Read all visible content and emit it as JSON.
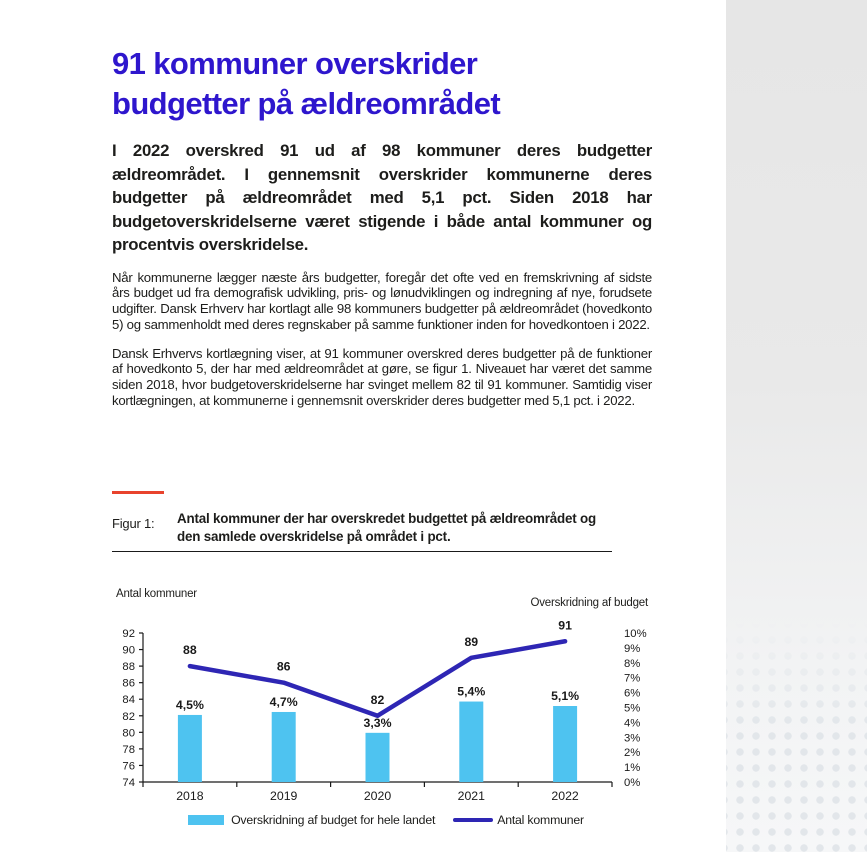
{
  "colors": {
    "title_blue": "#2e16cd",
    "line_blue": "#2e26b4",
    "bar_blue": "#4ec3f0",
    "accent_red": "#e8432d",
    "text": "#1d1d1b",
    "panel_gray": "#e7e7e7"
  },
  "article": {
    "title_line1": "91 kommuner overskrider",
    "title_line2": "budgetter på ældreområdet",
    "lead": "I 2022 overskred 91 ud af 98 kommuner deres budgetter ældreområdet. I gennemsnit overskrider kommunerne deres budgetter på ældreområdet med 5,1 pct. Siden 2018 har budgetoverskridelserne været stigende i både antal kommuner og procentvis overskridelse.",
    "paragraph1": "Når kommunerne lægger næste års budgetter, foregår det ofte ved en fremskrivning af sidste års budget ud fra demografisk udvikling, pris- og lønudviklingen og indregning af nye, forudsete udgifter. Dansk Erhverv har kortlagt alle 98 kommuners budgetter på ældreområdet (hovedkonto 5) og sammenholdt med deres regnskaber på samme funktioner inden for hovedkontoen i 2022.",
    "paragraph2": "Dansk Erhvervs kortlægning viser, at 91 kommuner overskred deres budgetter på de funktioner af hovedkonto 5, der har med ældreområdet at gøre, se figur 1. Niveauet har været det samme siden 2018, hvor budgetoverskridelserne har svinget mellem 82 til 91 kommuner. Samtidig viser kortlægningen, at kommunerne i gennemsnit overskrider deres budgetter med 5,1 pct. i 2022."
  },
  "figure": {
    "label": "Figur 1:",
    "caption": "Antal kommuner der har overskredet budgettet på ældreområdet og den samlede overskridelse på området i pct.",
    "axis_title_left": "Antal kommuner",
    "axis_title_right": "Overskridning af budget"
  },
  "chart_data": {
    "type": "combo",
    "categories": [
      "2018",
      "2019",
      "2020",
      "2021",
      "2022"
    ],
    "series": [
      {
        "name": "Overskridning af budget for hele landet",
        "type": "bar",
        "axis": "right",
        "values": [
          4.5,
          4.7,
          3.3,
          5.4,
          5.1
        ],
        "labels": [
          "4,5%",
          "4,7%",
          "3,3%",
          "5,4%",
          "5,1%"
        ],
        "color": "#4ec3f0"
      },
      {
        "name": "Antal kommuner",
        "type": "line",
        "axis": "left",
        "values": [
          88,
          86,
          82,
          89,
          91
        ],
        "labels": [
          "88",
          "86",
          "82",
          "89",
          "91"
        ],
        "color": "#2e26b4"
      }
    ],
    "left_axis": {
      "title": "Antal kommuner",
      "min": 74,
      "max": 92,
      "step": 2
    },
    "right_axis": {
      "title": "Overskridning af budget",
      "min": 0,
      "max": 10,
      "step": 1,
      "suffix": "%"
    },
    "grid": false,
    "legend_position": "bottom"
  }
}
